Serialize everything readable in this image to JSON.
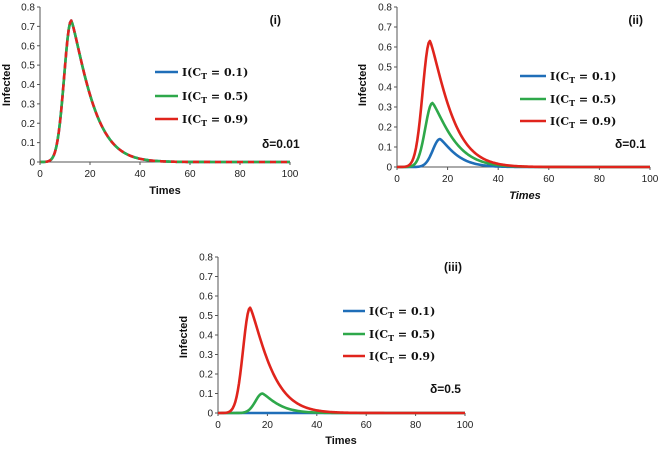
{
  "chart_data": [
    {
      "type": "line",
      "panel": "(i)",
      "annotation": "δ=0.01",
      "xlabel": "Times",
      "ylabel": "Infected",
      "xlim": [
        0,
        100
      ],
      "ylim": [
        0,
        0.8
      ],
      "xticks": [
        0,
        20,
        40,
        60,
        80,
        100
      ],
      "yticks": [
        0,
        0.1,
        0.2,
        0.3,
        0.4,
        0.5,
        0.6,
        0.7,
        0.8
      ],
      "series": [
        {
          "name": "I(C_T = 0.1)",
          "color": "#1f6eb8",
          "dashed": false,
          "peak": 0.73,
          "peak_time": 12.5
        },
        {
          "name": "I(C_T = 0.5)",
          "color": "#2ea84a",
          "dashed": true,
          "peak": 0.73,
          "peak_time": 12.5
        },
        {
          "name": "I(C_T = 0.9)",
          "color": "#e0241c",
          "dashed": true,
          "peak": 0.73,
          "peak_time": 12.5
        }
      ]
    },
    {
      "type": "line",
      "panel": "(ii)",
      "annotation": "δ=0.1",
      "xlabel": "Times",
      "ylabel": "Infected",
      "xlim": [
        0,
        100
      ],
      "ylim": [
        0,
        0.8
      ],
      "xticks": [
        0,
        20,
        40,
        60,
        80,
        100
      ],
      "yticks": [
        0,
        0.1,
        0.2,
        0.3,
        0.4,
        0.5,
        0.6,
        0.7,
        0.8
      ],
      "series": [
        {
          "name": "I(C_T = 0.1)",
          "color": "#1f6eb8",
          "dashed": false,
          "peak": 0.14,
          "peak_time": 17
        },
        {
          "name": "I(C_T = 0.5)",
          "color": "#2ea84a",
          "dashed": false,
          "peak": 0.32,
          "peak_time": 14
        },
        {
          "name": "I(C_T = 0.9)",
          "color": "#e0241c",
          "dashed": false,
          "peak": 0.63,
          "peak_time": 13
        }
      ]
    },
    {
      "type": "line",
      "panel": "(iii)",
      "annotation": "δ=0.5",
      "xlabel": "Times",
      "ylabel": "Infected",
      "xlim": [
        0,
        100
      ],
      "ylim": [
        0,
        0.8
      ],
      "xticks": [
        0,
        20,
        40,
        60,
        80,
        100
      ],
      "yticks": [
        0,
        0.1,
        0.2,
        0.3,
        0.4,
        0.5,
        0.6,
        0.7,
        0.8
      ],
      "series": [
        {
          "name": "I(C_T = 0.1)",
          "color": "#1f6eb8",
          "dashed": false,
          "peak": 0.0,
          "peak_time": 20
        },
        {
          "name": "I(C_T = 0.5)",
          "color": "#2ea84a",
          "dashed": false,
          "peak": 0.1,
          "peak_time": 18
        },
        {
          "name": "I(C_T = 0.9)",
          "color": "#e0241c",
          "dashed": false,
          "peak": 0.54,
          "peak_time": 13
        }
      ]
    }
  ]
}
